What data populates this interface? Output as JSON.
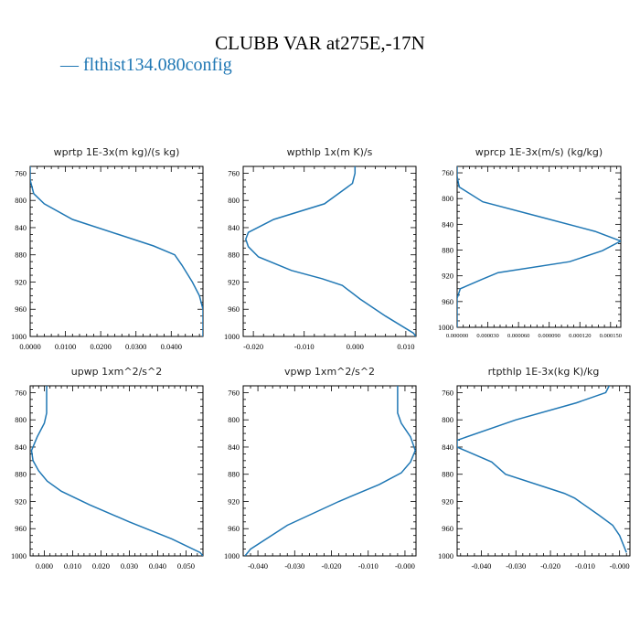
{
  "figure": {
    "title": "CLUBB VAR at275E,-17N",
    "legend_label": "— flthist134.080config",
    "line_color": "#1f77b4"
  },
  "chart_data": [
    {
      "type": "line",
      "title": "wprtp  1E-3x(m kg)/(s kg)",
      "xlim": [
        0,
        0.049
      ],
      "ylim": [
        1000,
        750
      ],
      "x_ticks": [
        0,
        0.01,
        0.02,
        0.03,
        0.04
      ],
      "x_tick_labels": [
        "0.0000",
        "0.0100",
        "0.0200",
        "0.0300",
        "0.0400"
      ],
      "y_ticks": [
        760,
        800,
        840,
        880,
        920,
        960,
        1000
      ],
      "y_tick_labels": [
        "760",
        "800",
        "840",
        "880",
        "920",
        "960",
        "1000"
      ],
      "series": [
        {
          "x": [
            0.0,
            0.0,
            0.001,
            0.004,
            0.012,
            0.035,
            0.041,
            0.043,
            0.046,
            0.048,
            0.049,
            0.049
          ],
          "y": [
            750,
            770,
            790,
            805,
            828,
            867,
            880,
            895,
            920,
            940,
            960,
            1000
          ]
        }
      ]
    },
    {
      "type": "line",
      "title": "wpthlp  1x(m K)/s",
      "xlim": [
        -0.022,
        0.012
      ],
      "ylim": [
        1000,
        750
      ],
      "x_ticks": [
        -0.02,
        -0.01,
        0.0,
        0.01
      ],
      "x_tick_labels": [
        "-0.020",
        "-0.010",
        "0.000",
        "0.010"
      ],
      "y_ticks": [
        760,
        800,
        840,
        880,
        920,
        960,
        1000
      ],
      "y_tick_labels": [
        "760",
        "800",
        "840",
        "880",
        "920",
        "960",
        "1000"
      ],
      "series": [
        {
          "x": [
            0.0,
            0.0,
            -0.0005,
            -0.006,
            -0.016,
            -0.021,
            -0.0215,
            -0.021,
            -0.019,
            -0.0125,
            -0.0065,
            -0.0025,
            0.001,
            0.006,
            0.0115,
            0.012
          ],
          "y": [
            750,
            760,
            775,
            805,
            828,
            847,
            857,
            868,
            883,
            903,
            915,
            925,
            945,
            970,
            995,
            1000
          ]
        }
      ]
    },
    {
      "type": "line",
      "title": "wprcp  1E-3x(m/s) (kg/kg)",
      "xlim": [
        0,
        0.00016
      ],
      "ylim": [
        1000,
        750
      ],
      "x_ticks": [
        0,
        3e-05,
        6e-05,
        9e-05,
        0.00012,
        0.00015
      ],
      "x_tick_labels": [
        "0.000000",
        "0.000030",
        "0.000060",
        "0.000090",
        "0.000120",
        "0.000150"
      ],
      "y_ticks": [
        760,
        800,
        840,
        880,
        920,
        960,
        1000
      ],
      "y_tick_labels": [
        "760",
        "800",
        "840",
        "880",
        "920",
        "960",
        "1000"
      ],
      "series": [
        {
          "x": [
            0.0,
            0.0,
            2e-06,
            2.5e-05,
            8e-05,
            0.000135,
            0.00016,
            0.000142,
            0.00011,
            4e-05,
            2.5e-05,
            3e-06,
            0.0,
            0.0
          ],
          "y": [
            750,
            765,
            782,
            805,
            828,
            851,
            866,
            881,
            898,
            915,
            925,
            940,
            955,
            1000
          ]
        }
      ]
    },
    {
      "type": "line",
      "title": "upwp  1xm^2/s^2",
      "xlim": [
        -0.005,
        0.056
      ],
      "ylim": [
        1000,
        750
      ],
      "x_ticks": [
        0.0,
        0.01,
        0.02,
        0.03,
        0.04,
        0.05
      ],
      "x_tick_labels": [
        "0.000",
        "0.010",
        "0.020",
        "0.030",
        "0.040",
        "0.050"
      ],
      "y_ticks": [
        760,
        800,
        840,
        880,
        920,
        960,
        1000
      ],
      "y_tick_labels": [
        "760",
        "800",
        "840",
        "880",
        "920",
        "960",
        "1000"
      ],
      "series": [
        {
          "x": [
            0.0008,
            0.0008,
            0.0,
            -0.0025,
            -0.0045,
            -0.004,
            -0.002,
            0.001,
            0.006,
            0.016,
            0.03,
            0.045,
            0.055,
            0.056
          ],
          "y": [
            750,
            790,
            805,
            825,
            845,
            860,
            875,
            890,
            905,
            925,
            950,
            975,
            995,
            1000
          ]
        }
      ]
    },
    {
      "type": "line",
      "title": "vpwp  1xm^2/s^2",
      "xlim": [
        -0.044,
        0.003
      ],
      "ylim": [
        1000,
        750
      ],
      "x_ticks": [
        -0.04,
        -0.03,
        -0.02,
        -0.01,
        0.0
      ],
      "x_tick_labels": [
        "-0.040",
        "-0.030",
        "-0.020",
        "-0.010",
        "-0.000"
      ],
      "y_ticks": [
        760,
        800,
        840,
        880,
        920,
        960,
        1000
      ],
      "y_tick_labels": [
        "760",
        "800",
        "840",
        "880",
        "920",
        "960",
        "1000"
      ],
      "series": [
        {
          "x": [
            -0.002,
            -0.002,
            -0.001,
            0.0015,
            0.0028,
            0.0015,
            -0.001,
            -0.007,
            -0.018,
            -0.032,
            -0.042,
            -0.0435
          ],
          "y": [
            750,
            790,
            805,
            825,
            845,
            862,
            878,
            895,
            920,
            955,
            990,
            1000
          ]
        }
      ]
    },
    {
      "type": "line",
      "title": "rtpthlp  1E-3x(kg K)/kg",
      "xlim": [
        -0.047,
        0.003
      ],
      "ylim": [
        1000,
        750
      ],
      "x_ticks": [
        -0.04,
        -0.03,
        -0.02,
        -0.01,
        0.0
      ],
      "x_tick_labels": [
        "-0.040",
        "-0.030",
        "-0.020",
        "-0.010",
        "-0.000"
      ],
      "y_ticks": [
        760,
        800,
        840,
        880,
        920,
        960,
        1000
      ],
      "y_tick_labels": [
        "760",
        "800",
        "840",
        "880",
        "920",
        "960",
        "1000"
      ],
      "series": [
        {
          "x": [
            -0.003,
            -0.004,
            -0.0125,
            -0.03,
            -0.047,
            -0.047,
            -0.037,
            -0.033,
            -0.016,
            -0.013,
            -0.006,
            -0.002,
            0.0,
            0.002
          ],
          "y": [
            750,
            760,
            775,
            800,
            830,
            840,
            862,
            880,
            908,
            915,
            940,
            955,
            970,
            995
          ]
        }
      ]
    }
  ]
}
